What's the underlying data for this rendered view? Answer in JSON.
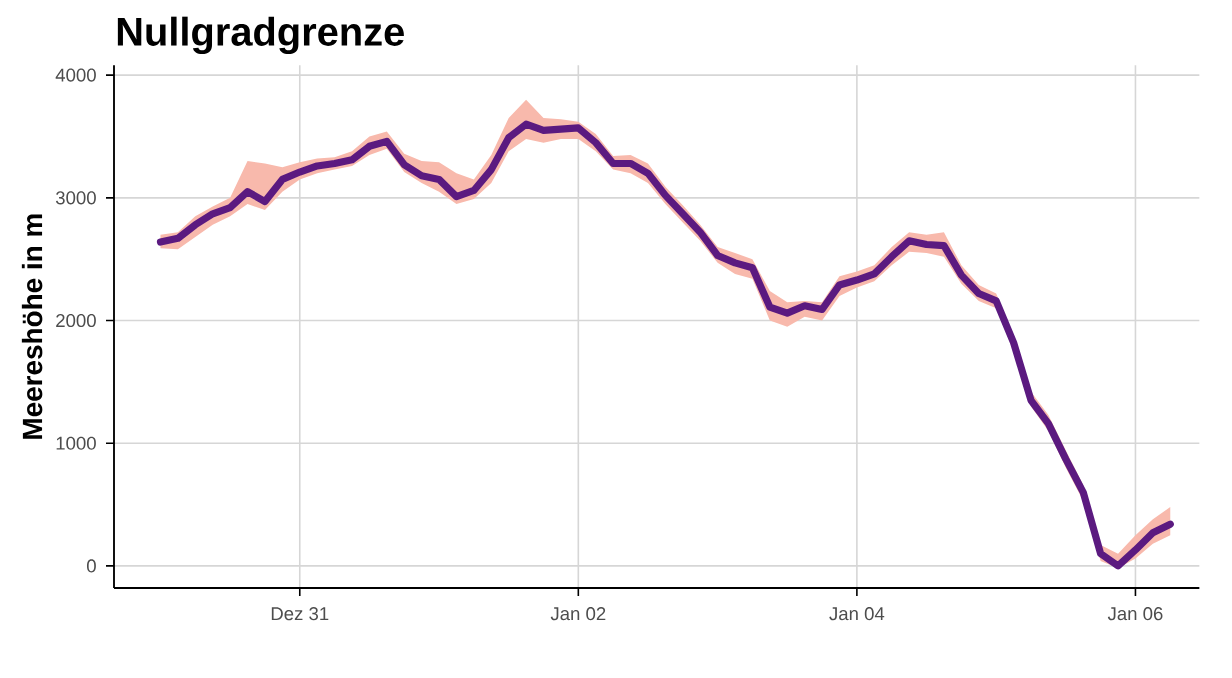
{
  "chart_data": {
    "type": "line",
    "title": "Nullgradgrenze",
    "ylabel": "Meereshöhe in m",
    "categories": [
      null,
      null,
      null,
      null,
      null,
      null,
      null,
      null,
      "Dez 31",
      null,
      null,
      null,
      null,
      null,
      null,
      null,
      null,
      null,
      null,
      null,
      null,
      null,
      null,
      null,
      "Jan 02",
      null,
      null,
      null,
      null,
      null,
      null,
      null,
      null,
      null,
      null,
      null,
      null,
      null,
      null,
      null,
      "Jan 04",
      null,
      null,
      null,
      null,
      null,
      null,
      null,
      null,
      null,
      null,
      null,
      null,
      null,
      null,
      null,
      "Jan 06",
      null,
      null
    ],
    "series": [
      {
        "color": "#5b1a80",
        "values": [
          2640,
          2670,
          2780,
          2870,
          2920,
          3050,
          2970,
          3150,
          3210,
          3260,
          3280,
          3310,
          3420,
          3460,
          3270,
          3180,
          3150,
          3010,
          3060,
          3230,
          3490,
          3600,
          3550,
          3560,
          3570,
          3450,
          3280,
          3280,
          3200,
          3020,
          2870,
          2720,
          2530,
          2470,
          2430,
          2110,
          2060,
          2120,
          2090,
          2290,
          2330,
          2380,
          2520,
          2650,
          2620,
          2610,
          2370,
          2220,
          2160,
          1820,
          1350,
          1160,
          870,
          600,
          100,
          0,
          130,
          270,
          340
        ],
        "lower": [
          2590,
          2580,
          2680,
          2780,
          2850,
          2950,
          2900,
          3050,
          3150,
          3200,
          3230,
          3260,
          3350,
          3400,
          3210,
          3120,
          3050,
          2950,
          2990,
          3120,
          3380,
          3480,
          3450,
          3480,
          3480,
          3380,
          3230,
          3200,
          3120,
          2950,
          2800,
          2650,
          2470,
          2380,
          2340,
          2000,
          1950,
          2030,
          2000,
          2200,
          2270,
          2320,
          2450,
          2560,
          2550,
          2520,
          2300,
          2160,
          2100,
          1750,
          1300,
          1100,
          800,
          530,
          40,
          -20,
          60,
          180,
          250
        ],
        "upper": [
          2700,
          2720,
          2850,
          2930,
          3000,
          3300,
          3280,
          3250,
          3290,
          3320,
          3330,
          3380,
          3500,
          3540,
          3360,
          3300,
          3290,
          3200,
          3150,
          3350,
          3650,
          3800,
          3650,
          3640,
          3620,
          3520,
          3340,
          3350,
          3280,
          3090,
          2940,
          2780,
          2600,
          2550,
          2500,
          2240,
          2150,
          2160,
          2150,
          2360,
          2400,
          2450,
          2600,
          2720,
          2700,
          2720,
          2450,
          2290,
          2220,
          1880,
          1420,
          1230,
          940,
          660,
          170,
          100,
          250,
          380,
          480
        ]
      }
    ],
    "ylim": [
      -180,
      4080
    ],
    "yticks": [
      0,
      1000,
      2000,
      3000,
      4000
    ],
    "grid": true,
    "line_style": "solid"
  }
}
